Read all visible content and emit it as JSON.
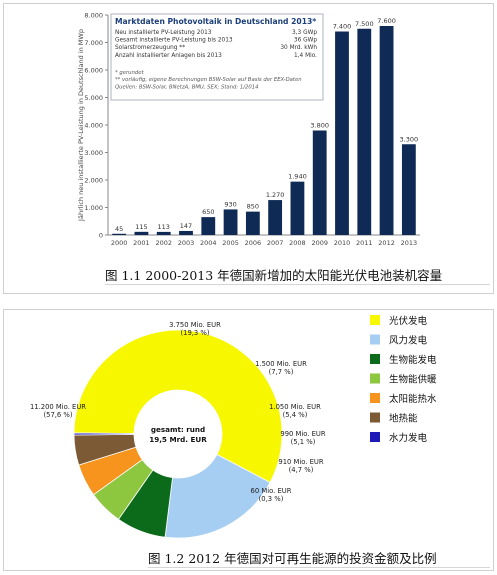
{
  "chart_data": [
    {
      "type": "bar",
      "categories": [
        "2000",
        "2001",
        "2002",
        "2003",
        "2004",
        "2005",
        "2006",
        "2007",
        "2008",
        "2009",
        "2010",
        "2011",
        "2012",
        "2013"
      ],
      "values": [
        45,
        115,
        113,
        147,
        650,
        930,
        850,
        1270,
        1940,
        3800,
        7400,
        7500,
        7600,
        3300
      ],
      "value_labels": [
        "45",
        "115",
        "113",
        "147",
        "650",
        "930",
        "850",
        "1.270",
        "1.940",
        "3.800",
        "7.400",
        "7.500",
        "7.600",
        "3.300"
      ],
      "ylabel": "Jährlich neu installierte PV-Leistung in Deutschland in MWp",
      "ylim": [
        0,
        8000
      ],
      "yticks": [
        0,
        1000,
        2000,
        3000,
        4000,
        5000,
        6000,
        7000,
        8000
      ],
      "ytick_labels": [
        "0",
        "1.000",
        "2.000",
        "3.000",
        "4.000",
        "5.000",
        "6.000",
        "7.000",
        "8.000"
      ],
      "grid": false,
      "bar_color": "#0f2a55",
      "inset": {
        "title": "Marktdaten Photovoltaik in Deutschland 2013*",
        "rows": [
          {
            "label": "Neu installierte PV-Leistung 2013",
            "value": "3,3 GWp"
          },
          {
            "label": "Gesamt installierte PV-Leistung bis 2013",
            "value": "36 GWp"
          },
          {
            "label": "Solarstromerzeugung **",
            "value": "30 Mrd. kWh"
          },
          {
            "label": "Anzahl installierter Anlagen bis 2013",
            "value": "1,4 Mio."
          }
        ],
        "notes": [
          "* gerundet",
          "** vorläufig, eigene Berechnungen BSW-Solar auf Basis der EEX-Daten",
          "Quellen: BSW-Solar, BNetzA, BMU, SEX; Stand: 1/2014"
        ]
      },
      "caption": "图 1.1   2000-2013 年德国新增加的太阳能光伏电池装机容量"
    },
    {
      "type": "pie",
      "donut": true,
      "center_label": [
        "gesamt: rund",
        "19,5 Mrd. EUR"
      ],
      "slices": [
        {
          "name": "光伏发电",
          "value": 11200,
          "amount": "11.200 Mio. EUR",
          "share": "(57,6 %)",
          "color": "#f7f700"
        },
        {
          "name": "风力发电",
          "value": 3750,
          "amount": "3.750 Mio. EUR",
          "share": "(19,3 %)",
          "color": "#a6cdf2"
        },
        {
          "name": "生物能发电",
          "value": 1500,
          "amount": "1.500 Mio. EUR",
          "share": "(7,7 %)",
          "color": "#0b6b1a"
        },
        {
          "name": "生物能供暖",
          "value": 1050,
          "amount": "1.050 Mio. EUR",
          "share": "(5,4 %)",
          "color": "#8dc63f"
        },
        {
          "name": "太阳能热水",
          "value": 990,
          "amount": "990 Mio. EUR",
          "share": "(5,1 %)",
          "color": "#f7941d"
        },
        {
          "name": "地热能",
          "value": 910,
          "amount": "910 Mio. EUR",
          "share": "(4,7 %)",
          "color": "#7b5a35"
        },
        {
          "name": "水力发电",
          "value": 60,
          "amount": "60 Mio. EUR",
          "share": "(0,3 %)",
          "color": "#1d1ab8"
        }
      ],
      "legend_position": "right",
      "caption": "图 1.2   2012 年德国对可再生能源的投资金额及比例"
    }
  ]
}
